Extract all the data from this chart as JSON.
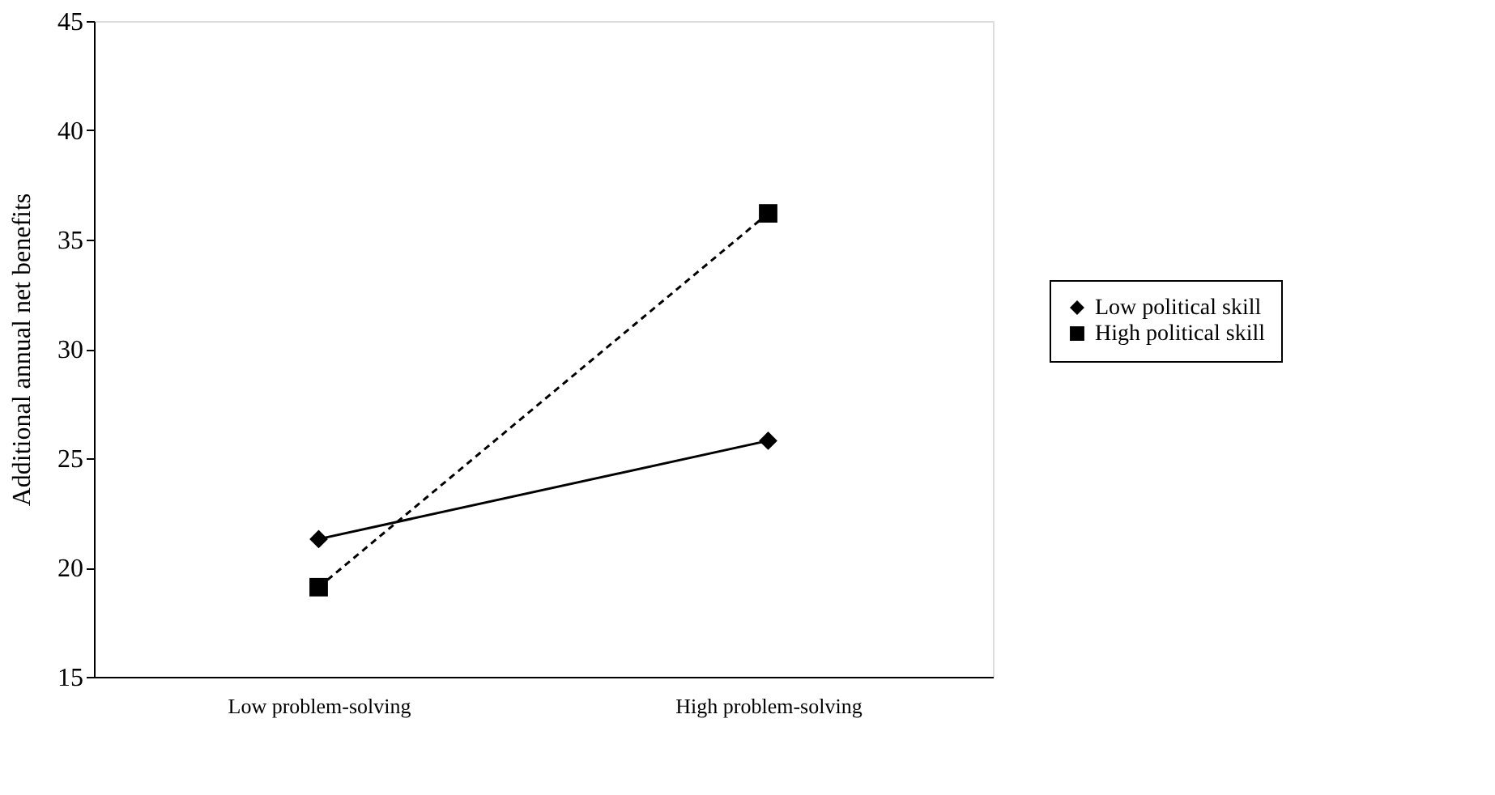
{
  "chart_data": {
    "type": "line",
    "ylabel": "Additional annual net benefits",
    "categories": [
      "Low problem-solving",
      "High problem-solving"
    ],
    "series": [
      {
        "name": "Low political skill",
        "color": "#000000",
        "values": [
          21.3,
          25.8
        ],
        "marker": "diamond",
        "line_style": "solid"
      },
      {
        "name": "High political skill",
        "color": "#000000",
        "values": [
          19.1,
          36.2
        ],
        "marker": "square",
        "line_style": "dashed"
      }
    ],
    "ylim": [
      15,
      45
    ],
    "yticks": [
      15,
      20,
      25,
      30,
      35,
      40,
      45
    ],
    "grid": false,
    "legend": "right"
  }
}
